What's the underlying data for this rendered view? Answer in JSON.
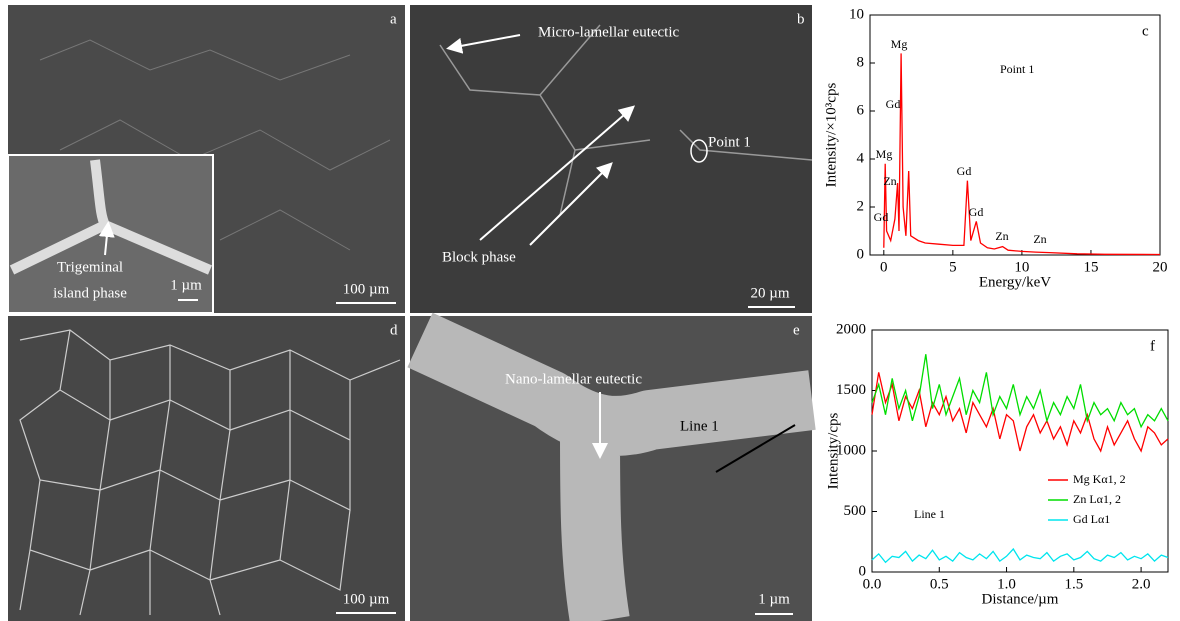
{
  "images": {
    "a": {
      "letter": "a",
      "scale": "100 µm",
      "inset_label": [
        "Trigeminal",
        "island phase"
      ],
      "inset_scale": "1 µm"
    },
    "b": {
      "letter": "b",
      "label_1": "Micro-lamellar eutectic",
      "label_2": "Point 1",
      "label_3": "Block phase",
      "scale": "20 µm"
    },
    "d": {
      "letter": "d",
      "scale": "100 µm"
    },
    "e": {
      "letter": "e",
      "label_1": "Nano-lamellar eutectic",
      "label_2": "Line 1",
      "scale": "1 µm"
    }
  },
  "chart_data": [
    {
      "type": "line",
      "panel": "c",
      "title": "Point 1",
      "xlabel": "Energy/keV",
      "ylabel": "Intensity/×10³cps",
      "x": [
        0.0,
        0.1,
        0.2,
        0.5,
        0.8,
        1.0,
        1.1,
        1.25,
        1.4,
        1.6,
        1.8,
        1.95,
        2.5,
        3,
        4,
        5,
        5.8,
        6.05,
        6.3,
        6.7,
        7,
        7.5,
        8,
        8.6,
        9,
        10,
        11,
        12,
        14,
        16,
        20
      ],
      "series": [
        {
          "name": "Point 1",
          "color": "#ff0000",
          "values": [
            0.3,
            3.8,
            1.0,
            0.6,
            1.5,
            3.0,
            1.0,
            8.4,
            2.0,
            0.8,
            3.5,
            0.8,
            0.6,
            0.5,
            0.45,
            0.4,
            0.4,
            3.1,
            0.6,
            1.4,
            0.5,
            0.3,
            0.25,
            0.35,
            0.2,
            0.15,
            0.12,
            0.1,
            0.05,
            0.03,
            0.02
          ]
        }
      ],
      "annotations": [
        "Mg",
        "Gd",
        "Mg",
        "Zn",
        "Gd",
        "Gd",
        "Gd",
        "Zn",
        "Zn"
      ],
      "xlim": [
        -1,
        20
      ],
      "xticks": [
        0,
        5,
        10,
        15,
        20
      ],
      "ylim": [
        0,
        10
      ],
      "yticks": [
        0,
        2,
        4,
        6,
        8,
        10
      ]
    },
    {
      "type": "line",
      "panel": "f",
      "annotation": "Line 1",
      "xlabel": "Distance/µm",
      "ylabel": "Intensity/cps",
      "x": [
        0,
        0.05,
        0.1,
        0.15,
        0.2,
        0.25,
        0.3,
        0.35,
        0.4,
        0.45,
        0.5,
        0.55,
        0.6,
        0.65,
        0.7,
        0.75,
        0.8,
        0.85,
        0.9,
        0.95,
        1.0,
        1.05,
        1.1,
        1.15,
        1.2,
        1.25,
        1.3,
        1.35,
        1.4,
        1.45,
        1.5,
        1.55,
        1.6,
        1.65,
        1.7,
        1.75,
        1.8,
        1.85,
        1.9,
        1.95,
        2.0,
        2.05,
        2.1,
        2.15,
        2.2
      ],
      "series": [
        {
          "name": "Mg  Kα1, 2",
          "color": "#ff0000",
          "values": [
            1300,
            1650,
            1400,
            1550,
            1250,
            1450,
            1350,
            1500,
            1200,
            1400,
            1300,
            1450,
            1250,
            1350,
            1150,
            1400,
            1300,
            1200,
            1350,
            1100,
            1300,
            1250,
            1000,
            1200,
            1300,
            1150,
            1250,
            1100,
            1200,
            1050,
            1250,
            1150,
            1300,
            1100,
            1000,
            1200,
            1050,
            1150,
            1250,
            1100,
            1000,
            1200,
            1150,
            1050,
            1100
          ]
        },
        {
          "name": "Zn  Lα1, 2",
          "color": "#00dd00",
          "values": [
            1400,
            1550,
            1300,
            1600,
            1350,
            1500,
            1250,
            1450,
            1800,
            1350,
            1550,
            1300,
            1450,
            1600,
            1300,
            1500,
            1400,
            1650,
            1300,
            1450,
            1350,
            1550,
            1300,
            1450,
            1350,
            1500,
            1250,
            1400,
            1300,
            1450,
            1350,
            1550,
            1250,
            1400,
            1300,
            1350,
            1250,
            1400,
            1300,
            1350,
            1200,
            1300,
            1250,
            1350,
            1250
          ]
        },
        {
          "name": "Gd  Lα1",
          "color": "#00e5ee",
          "values": [
            100,
            150,
            80,
            130,
            120,
            170,
            90,
            140,
            110,
            180,
            100,
            130,
            90,
            160,
            120,
            100,
            150,
            110,
            170,
            90,
            130,
            190,
            100,
            140,
            120,
            110,
            160,
            90,
            130,
            150,
            100,
            120,
            170,
            110,
            90,
            140,
            120,
            160,
            100,
            130,
            110,
            150,
            90,
            140,
            120
          ]
        }
      ],
      "xlim": [
        0,
        2.2
      ],
      "xticks": [
        {
          "value": 0,
          "label": "0.0"
        },
        0.5,
        {
          "value": 1,
          "label": "1.0"
        },
        1.5,
        {
          "value": 2,
          "label": "2.0"
        }
      ],
      "ylim": [
        0,
        2000
      ],
      "yticks": [
        0,
        500,
        1000,
        1500,
        2000
      ]
    }
  ]
}
